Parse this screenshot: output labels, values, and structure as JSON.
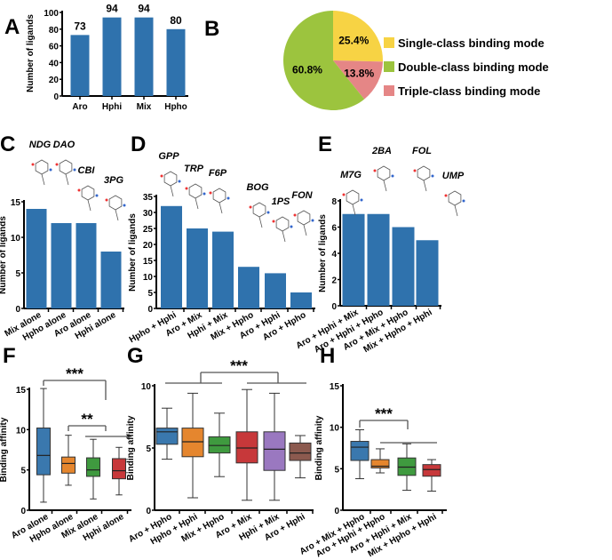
{
  "colors": {
    "bar": "#2f72ad",
    "pie": [
      "#f7d344",
      "#9cc43e",
      "#e58686"
    ],
    "box": [
      "#3a78ae",
      "#e5862e",
      "#3f9a3f",
      "#c7383a",
      "#9a78c0",
      "#8c5a4f"
    ]
  },
  "chart_data": [
    {
      "id": "A",
      "panel_label": "A",
      "type": "bar",
      "ylabel": "Number of ligands",
      "categories": [
        "Aro",
        "Hphi",
        "Mix",
        "Hpho"
      ],
      "values": [
        73,
        94,
        94,
        80
      ],
      "data_labels": [
        "73",
        "94",
        "94",
        "80"
      ],
      "ylim": [
        0,
        100
      ],
      "yticks": [
        0,
        20,
        40,
        60,
        80,
        100
      ]
    },
    {
      "id": "B",
      "panel_label": "B",
      "type": "pie",
      "slices": [
        {
          "label": "Single-class binding mode",
          "value": 25.4,
          "text": "25.4%"
        },
        {
          "label": "Triple-class binding mode",
          "value": 13.8,
          "text": "13.8%"
        },
        {
          "label": "Double-class binding mode",
          "value": 60.8,
          "text": "60.8%"
        }
      ],
      "legend": [
        "Single-class binding mode",
        "Double-class binding mode",
        "Triple-class binding mode"
      ]
    },
    {
      "id": "C",
      "panel_label": "C",
      "type": "bar",
      "ylabel": "Number of ligands",
      "categories": [
        "Mix  alone",
        "Hpho  alone",
        "Aro  alone",
        "Hphi  alone"
      ],
      "values": [
        14,
        12,
        12,
        8
      ],
      "ylim": [
        0,
        15
      ],
      "yticks": [
        0,
        5,
        10,
        15
      ],
      "molecules": [
        "NDG",
        "DAO",
        "CBI",
        "3PG"
      ]
    },
    {
      "id": "D",
      "panel_label": "D",
      "type": "bar",
      "ylabel": "Number of ligands",
      "categories": [
        "Hpho + Hphi",
        "Aro + Mix",
        "Hphi + Mix",
        "Mix + Hpho",
        "Aro + Hphi",
        "Aro + Hpho"
      ],
      "values": [
        32,
        25,
        24,
        13,
        11,
        5
      ],
      "ylim": [
        0,
        35
      ],
      "yticks": [
        0,
        5,
        10,
        15,
        20,
        25,
        30,
        35
      ],
      "molecules": [
        "GPP",
        "TRP",
        "F6P",
        "BOG",
        "1PS",
        "FON"
      ]
    },
    {
      "id": "E",
      "panel_label": "E",
      "type": "bar",
      "ylabel": "Number of ligands",
      "categories": [
        "Aro + Hphi + Mix",
        "Aro + Hphi + Hpho",
        "Aro + Mix + Hpho",
        "Mix + Hpho + Hphi"
      ],
      "values": [
        7,
        7,
        6,
        5
      ],
      "ylim": [
        0,
        8
      ],
      "yticks": [
        0,
        2,
        4,
        6,
        8
      ],
      "molecules": [
        "M7G",
        "2BA",
        "FOL",
        "UMP"
      ]
    },
    {
      "id": "F",
      "panel_label": "F",
      "type": "box",
      "ylabel": "Binding affinity",
      "categories": [
        "Aro  alone",
        "Hpho  alone",
        "Mix  alone",
        "Hphi  alone"
      ],
      "ylim": [
        0,
        15
      ],
      "yticks": [
        0,
        5,
        10,
        15
      ],
      "boxes": [
        [
          1.0,
          4.4,
          6.8,
          10.2,
          15.1
        ],
        [
          3.1,
          4.6,
          5.8,
          6.6,
          9.3
        ],
        [
          1.4,
          4.2,
          5.0,
          6.5,
          8.8
        ],
        [
          1.9,
          3.9,
          4.9,
          6.4,
          7.8
        ]
      ],
      "significance": [
        "***",
        "**"
      ]
    },
    {
      "id": "G",
      "panel_label": "G",
      "type": "box",
      "ylabel": "Binding affinity",
      "categories": [
        "Aro + Hpho",
        "Hpho + Hphi",
        "Mix + Hpho",
        "Aro + Mix",
        "Hphi + Mix",
        "Aro + Hphi"
      ],
      "ylim": [
        0,
        10
      ],
      "yticks": [
        0,
        5,
        10
      ],
      "boxes": [
        [
          4.1,
          5.3,
          6.3,
          6.6,
          8.2
        ],
        [
          1.0,
          4.3,
          5.5,
          6.6,
          9.4
        ],
        [
          2.7,
          4.6,
          5.2,
          5.9,
          7.8
        ],
        [
          0.8,
          3.8,
          5.0,
          6.3,
          9.7
        ],
        [
          0.8,
          3.2,
          4.9,
          6.3,
          9.4
        ],
        [
          2.6,
          4.0,
          4.6,
          5.4,
          6.0
        ]
      ],
      "significance": [
        "***"
      ]
    },
    {
      "id": "H",
      "panel_label": "H",
      "type": "box",
      "ylabel": "Binding affinity",
      "categories": [
        "Aro + Mix + Hpho",
        "Aro + Hphi + Hpho",
        "Aro + Hphi + Mix",
        "Mix + Hpho + Hphi"
      ],
      "ylim": [
        0,
        15
      ],
      "yticks": [
        0,
        5,
        10,
        15
      ],
      "boxes": [
        [
          3.8,
          6.0,
          7.6,
          8.3,
          9.7
        ],
        [
          4.5,
          5.1,
          5.3,
          6.1,
          7.4
        ],
        [
          2.4,
          4.2,
          5.2,
          6.3,
          8.0
        ],
        [
          2.3,
          4.1,
          4.9,
          5.5,
          6.1
        ]
      ],
      "significance": [
        "***"
      ]
    }
  ]
}
